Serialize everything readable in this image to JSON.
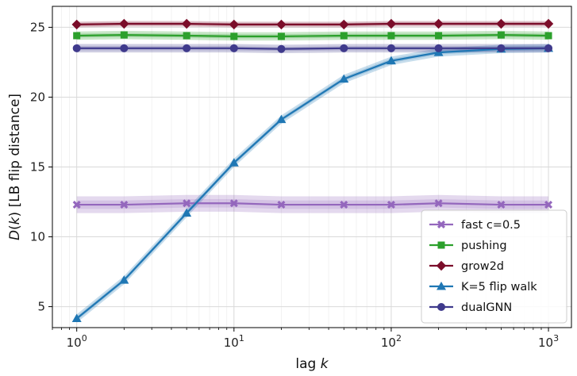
{
  "chart_data": {
    "type": "line",
    "xscale": "log",
    "xlim": [
      0.7,
      1400
    ],
    "ylim": [
      3.5,
      26.5
    ],
    "xlabel": "lag k",
    "ylabel": "D(k)  [LB flip distance]",
    "grid": true,
    "legend_position": "bottom-right",
    "x": [
      1,
      2,
      5,
      10,
      20,
      50,
      100,
      200,
      500,
      1000
    ],
    "x_ticks": [
      {
        "value": 1,
        "base": "10",
        "exp": "0"
      },
      {
        "value": 10,
        "base": "10",
        "exp": "1"
      },
      {
        "value": 100,
        "base": "10",
        "exp": "2"
      },
      {
        "value": 1000,
        "base": "10",
        "exp": "3"
      }
    ],
    "y_ticks": [
      5,
      10,
      15,
      20,
      25
    ],
    "series": [
      {
        "name": "fast c=0.5",
        "color": "#9467bd",
        "marker": "X",
        "band": 0.6,
        "values": [
          12.3,
          12.3,
          12.4,
          12.4,
          12.3,
          12.3,
          12.3,
          12.4,
          12.3,
          12.3
        ]
      },
      {
        "name": "pushing",
        "color": "#2ca02c",
        "marker": "square",
        "band": 0.3,
        "values": [
          24.4,
          24.45,
          24.4,
          24.35,
          24.35,
          24.4,
          24.4,
          24.4,
          24.45,
          24.4
        ]
      },
      {
        "name": "grow2d",
        "color": "#7b0d2a",
        "marker": "diamond",
        "band": 0.2,
        "values": [
          25.2,
          25.25,
          25.25,
          25.2,
          25.2,
          25.2,
          25.25,
          25.25,
          25.25,
          25.25
        ]
      },
      {
        "name": "K=5 flip walk",
        "color": "#1f77b4",
        "marker": "triangle",
        "band": 0.3,
        "values": [
          4.15,
          6.9,
          11.7,
          15.3,
          18.4,
          21.3,
          22.6,
          23.2,
          23.45,
          23.5
        ]
      },
      {
        "name": "dualGNN",
        "color": "#3f3a8c",
        "marker": "circle",
        "band": 0.3,
        "values": [
          23.5,
          23.5,
          23.5,
          23.5,
          23.45,
          23.5,
          23.5,
          23.5,
          23.5,
          23.5
        ]
      }
    ]
  }
}
